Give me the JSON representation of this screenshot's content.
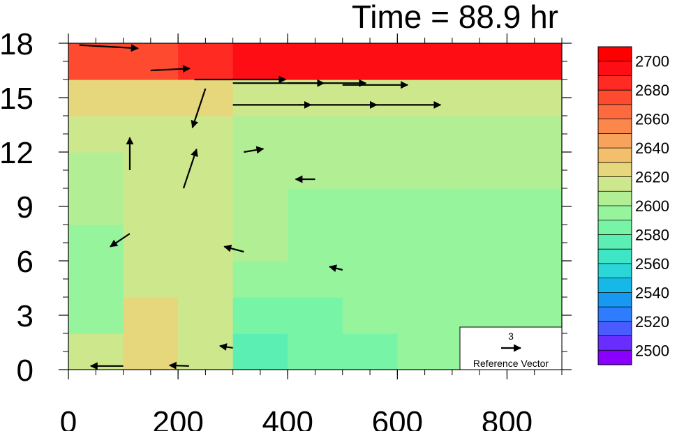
{
  "chart_data": {
    "type": "heatmap",
    "title": "Time = 88.9 hr",
    "xlabel": "",
    "ylabel": "",
    "xlim": [
      0,
      900
    ],
    "ylim": [
      0,
      18
    ],
    "x_ticks": [
      "0",
      "200",
      "400",
      "600",
      "800"
    ],
    "y_ticks": [
      "0",
      "3",
      "6",
      "9",
      "12",
      "15",
      "18"
    ],
    "x_tick_values": [
      0,
      200,
      400,
      600,
      800
    ],
    "y_tick_values": [
      0,
      3,
      6,
      9,
      12,
      15,
      18
    ],
    "x_minor_step": 50,
    "y_minor_step": 1,
    "colorbar": {
      "min": 2490,
      "max": 2710,
      "step": 10,
      "labels": [
        "2500",
        "2520",
        "2540",
        "2560",
        "2580",
        "2600",
        "2620",
        "2640",
        "2660",
        "2680",
        "2700"
      ],
      "label_values": [
        2500,
        2520,
        2540,
        2560,
        2580,
        2600,
        2620,
        2640,
        2660,
        2680,
        2700
      ],
      "colors": [
        "#8a00ff",
        "#6a2dff",
        "#4a5cff",
        "#2e7dff",
        "#1799f2",
        "#16b8e8",
        "#2ad6d8",
        "#3fe6c6",
        "#5cefb4",
        "#78f4a6",
        "#95f49c",
        "#b2ef94",
        "#cde88c",
        "#e6d67c",
        "#f3bf6c",
        "#f8a35c",
        "#fb874c",
        "#fd6a3e",
        "#fe4b30",
        "#ff2b22",
        "#ff0d14",
        "#ff0000"
      ]
    },
    "field": {
      "x_edges": [
        0,
        100,
        200,
        300,
        400,
        500,
        600,
        700,
        800,
        900
      ],
      "y_edges": [
        0,
        2,
        4,
        6,
        8,
        10,
        12,
        14,
        16,
        18
      ],
      "values_by_row_bottom_to_top": [
        [
          2610,
          2625,
          2615,
          2575,
          2580,
          2585,
          2590,
          2595,
          2595
        ],
        [
          2595,
          2620,
          2610,
          2585,
          2585,
          2590,
          2595,
          2595,
          2595
        ],
        [
          2590,
          2615,
          2610,
          2590,
          2590,
          2590,
          2595,
          2595,
          2595
        ],
        [
          2595,
          2615,
          2610,
          2600,
          2595,
          2595,
          2595,
          2595,
          2595
        ],
        [
          2600,
          2615,
          2610,
          2605,
          2595,
          2595,
          2595,
          2595,
          2595
        ],
        [
          2605,
          2615,
          2610,
          2605,
          2600,
          2600,
          2600,
          2600,
          2600
        ],
        [
          2610,
          2615,
          2615,
          2605,
          2600,
          2600,
          2605,
          2605,
          2605
        ],
        [
          2620,
          2620,
          2620,
          2615,
          2615,
          2615,
          2615,
          2615,
          2615
        ],
        [
          2670,
          2675,
          2685,
          2690,
          2690,
          2690,
          2690,
          2690,
          2690
        ]
      ]
    },
    "vectors": {
      "reference_magnitude": 3,
      "reference_value_label": "3",
      "reference_label": "Reference Vector",
      "samples": [
        {
          "x": 20,
          "y": 17.9,
          "u": 9,
          "v": -0.5
        },
        {
          "x": 150,
          "y": 16.5,
          "u": 6,
          "v": 0.3
        },
        {
          "x": 230,
          "y": 16.0,
          "u": 14,
          "v": 0.0
        },
        {
          "x": 300,
          "y": 15.8,
          "u": 14,
          "v": 0.0
        },
        {
          "x": 400,
          "y": 15.8,
          "u": 12,
          "v": 0.0
        },
        {
          "x": 500,
          "y": 15.7,
          "u": 10,
          "v": 0.0
        },
        {
          "x": 300,
          "y": 14.6,
          "u": 12,
          "v": 0.0
        },
        {
          "x": 420,
          "y": 14.6,
          "u": 12,
          "v": 0.0
        },
        {
          "x": 560,
          "y": 14.6,
          "u": 10,
          "v": 0.0
        },
        {
          "x": 250,
          "y": 15.5,
          "u": -2,
          "v": -6
        },
        {
          "x": 112,
          "y": 11.0,
          "u": 0,
          "v": 5
        },
        {
          "x": 112,
          "y": 7.5,
          "u": -3,
          "v": -2
        },
        {
          "x": 210,
          "y": 10.0,
          "u": 2,
          "v": 6
        },
        {
          "x": 320,
          "y": 12.0,
          "u": 3,
          "v": 0.5
        },
        {
          "x": 450,
          "y": 10.5,
          "u": -3,
          "v": 0.0
        },
        {
          "x": 320,
          "y": 6.5,
          "u": -3,
          "v": 0.8
        },
        {
          "x": 500,
          "y": 5.5,
          "u": -2,
          "v": 0.5
        },
        {
          "x": 300,
          "y": 1.2,
          "u": -2,
          "v": 0.3
        },
        {
          "x": 100,
          "y": 0.2,
          "u": -5,
          "v": 0.0
        },
        {
          "x": 220,
          "y": 0.2,
          "u": -3,
          "v": 0.1
        }
      ]
    }
  }
}
